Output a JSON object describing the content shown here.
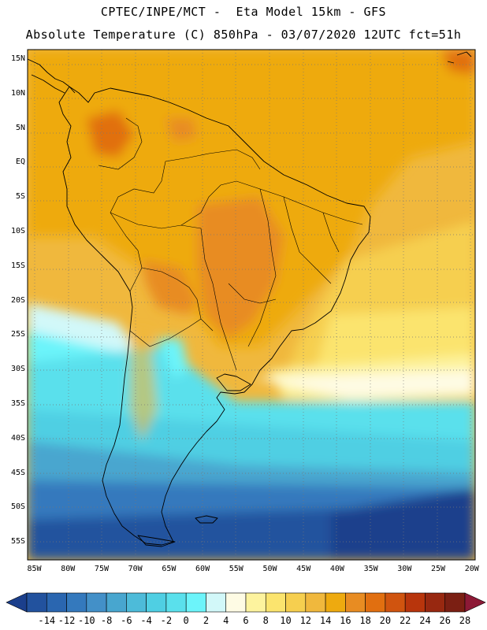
{
  "header": {
    "line1": "CPTEC/INPE/MCT -  Eta Model 15km - GFS",
    "line2": "Absolute Temperature (C) 850hPa - 03/07/2020 12UTC fct=51h"
  },
  "map": {
    "lat_labels": [
      "15N",
      "10N",
      "5N",
      "EQ",
      "5S",
      "10S",
      "15S",
      "20S",
      "25S",
      "30S",
      "35S",
      "40S",
      "45S",
      "50S",
      "55S"
    ],
    "lon_labels": [
      "85W",
      "80W",
      "75W",
      "70W",
      "65W",
      "60W",
      "55W",
      "50W",
      "45W",
      "40W",
      "35W",
      "30W",
      "25W",
      "20W"
    ],
    "lat_values": [
      15,
      10,
      5,
      0,
      -5,
      -10,
      -15,
      -20,
      -25,
      -30,
      -35,
      -40,
      -45,
      -50,
      -55
    ],
    "lon_values": [
      -85,
      -80,
      -75,
      -70,
      -65,
      -60,
      -55,
      -50,
      -45,
      -40,
      -35,
      -30,
      -25,
      -20
    ],
    "lat_range": [
      -57.5,
      16.5
    ],
    "lon_range": [
      -86,
      -19.5
    ]
  },
  "colorbar": {
    "labels": [
      "-14",
      "-12",
      "-10",
      "-8",
      "-6",
      "-4",
      "-2",
      "0",
      "2",
      "4",
      "6",
      "8",
      "10",
      "12",
      "14",
      "16",
      "18",
      "20",
      "22",
      "24",
      "26",
      "28"
    ],
    "colors": [
      "#1b3f8c",
      "#22529e",
      "#2a66b0",
      "#3479bd",
      "#4390c8",
      "#48a6cf",
      "#4dbbd9",
      "#4fcfe3",
      "#5ae0ec",
      "#6cf4fa",
      "#d2f8f9",
      "#fefbe4",
      "#fdf39e",
      "#fbe46e",
      "#f6cf4f",
      "#f0b83d",
      "#eeaa0f",
      "#e88c22",
      "#e16f10",
      "#d0540f",
      "#b8350c",
      "#982810",
      "#7b1f13",
      "#8d1936"
    ]
  }
}
